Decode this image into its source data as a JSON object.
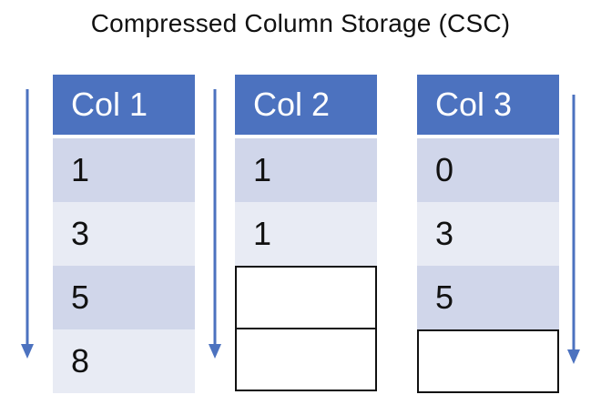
{
  "title": "Compressed Column Storage (CSC)",
  "accent_color": "#4c72bf",
  "columns": [
    {
      "header": "Col 1",
      "values": [
        "1",
        "3",
        "5",
        "8"
      ]
    },
    {
      "header": "Col 2",
      "values": [
        "1",
        "1",
        "",
        ""
      ]
    },
    {
      "header": "Col 3",
      "values": [
        "0",
        "3",
        "5",
        ""
      ]
    }
  ],
  "arrow_icon": "arrow-down-icon"
}
